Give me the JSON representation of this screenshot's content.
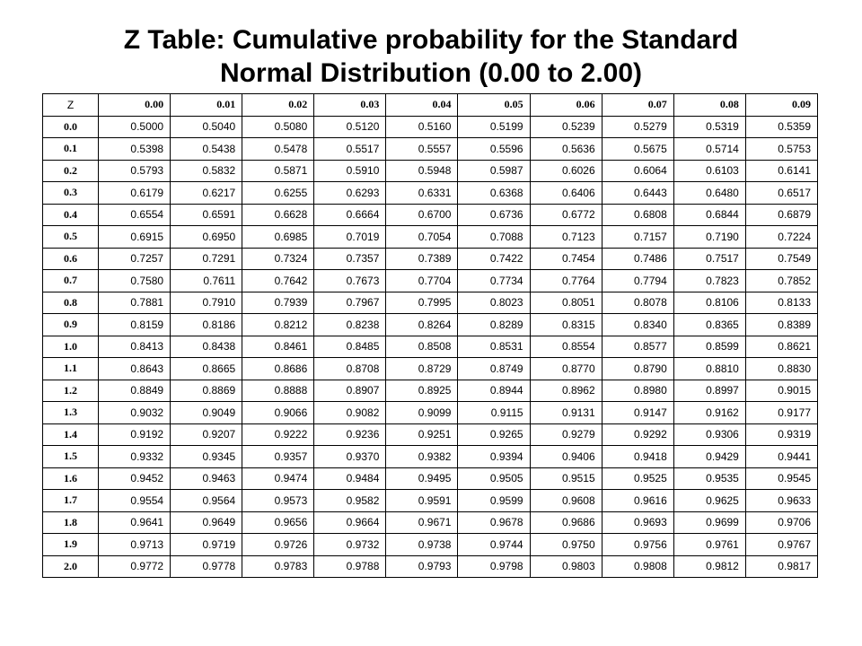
{
  "title": {
    "line1": "Z Table: Cumulative probability for the Standard",
    "line2": "Normal Distribution (0.00 to 2.00)"
  },
  "table": {
    "corner": "Z",
    "columns": [
      "0.00",
      "0.01",
      "0.02",
      "0.03",
      "0.04",
      "0.05",
      "0.06",
      "0.07",
      "0.08",
      "0.09"
    ],
    "rows": [
      {
        "z": "0.0",
        "values": [
          "0.5000",
          "0.5040",
          "0.5080",
          "0.5120",
          "0.5160",
          "0.5199",
          "0.5239",
          "0.5279",
          "0.5319",
          "0.5359"
        ]
      },
      {
        "z": "0.1",
        "values": [
          "0.5398",
          "0.5438",
          "0.5478",
          "0.5517",
          "0.5557",
          "0.5596",
          "0.5636",
          "0.5675",
          "0.5714",
          "0.5753"
        ]
      },
      {
        "z": "0.2",
        "values": [
          "0.5793",
          "0.5832",
          "0.5871",
          "0.5910",
          "0.5948",
          "0.5987",
          "0.6026",
          "0.6064",
          "0.6103",
          "0.6141"
        ]
      },
      {
        "z": "0.3",
        "values": [
          "0.6179",
          "0.6217",
          "0.6255",
          "0.6293",
          "0.6331",
          "0.6368",
          "0.6406",
          "0.6443",
          "0.6480",
          "0.6517"
        ]
      },
      {
        "z": "0.4",
        "values": [
          "0.6554",
          "0.6591",
          "0.6628",
          "0.6664",
          "0.6700",
          "0.6736",
          "0.6772",
          "0.6808",
          "0.6844",
          "0.6879"
        ]
      },
      {
        "z": "0.5",
        "values": [
          "0.6915",
          "0.6950",
          "0.6985",
          "0.7019",
          "0.7054",
          "0.7088",
          "0.7123",
          "0.7157",
          "0.7190",
          "0.7224"
        ]
      },
      {
        "z": "0.6",
        "values": [
          "0.7257",
          "0.7291",
          "0.7324",
          "0.7357",
          "0.7389",
          "0.7422",
          "0.7454",
          "0.7486",
          "0.7517",
          "0.7549"
        ]
      },
      {
        "z": "0.7",
        "values": [
          "0.7580",
          "0.7611",
          "0.7642",
          "0.7673",
          "0.7704",
          "0.7734",
          "0.7764",
          "0.7794",
          "0.7823",
          "0.7852"
        ]
      },
      {
        "z": "0.8",
        "values": [
          "0.7881",
          "0.7910",
          "0.7939",
          "0.7967",
          "0.7995",
          "0.8023",
          "0.8051",
          "0.8078",
          "0.8106",
          "0.8133"
        ]
      },
      {
        "z": "0.9",
        "values": [
          "0.8159",
          "0.8186",
          "0.8212",
          "0.8238",
          "0.8264",
          "0.8289",
          "0.8315",
          "0.8340",
          "0.8365",
          "0.8389"
        ]
      },
      {
        "z": "1.0",
        "values": [
          "0.8413",
          "0.8438",
          "0.8461",
          "0.8485",
          "0.8508",
          "0.8531",
          "0.8554",
          "0.8577",
          "0.8599",
          "0.8621"
        ]
      },
      {
        "z": "1.1",
        "values": [
          "0.8643",
          "0.8665",
          "0.8686",
          "0.8708",
          "0.8729",
          "0.8749",
          "0.8770",
          "0.8790",
          "0.8810",
          "0.8830"
        ]
      },
      {
        "z": "1.2",
        "values": [
          "0.8849",
          "0.8869",
          "0.8888",
          "0.8907",
          "0.8925",
          "0.8944",
          "0.8962",
          "0.8980",
          "0.8997",
          "0.9015"
        ]
      },
      {
        "z": "1.3",
        "values": [
          "0.9032",
          "0.9049",
          "0.9066",
          "0.9082",
          "0.9099",
          "0.9115",
          "0.9131",
          "0.9147",
          "0.9162",
          "0.9177"
        ]
      },
      {
        "z": "1.4",
        "values": [
          "0.9192",
          "0.9207",
          "0.9222",
          "0.9236",
          "0.9251",
          "0.9265",
          "0.9279",
          "0.9292",
          "0.9306",
          "0.9319"
        ]
      },
      {
        "z": "1.5",
        "values": [
          "0.9332",
          "0.9345",
          "0.9357",
          "0.9370",
          "0.9382",
          "0.9394",
          "0.9406",
          "0.9418",
          "0.9429",
          "0.9441"
        ]
      },
      {
        "z": "1.6",
        "values": [
          "0.9452",
          "0.9463",
          "0.9474",
          "0.9484",
          "0.9495",
          "0.9505",
          "0.9515",
          "0.9525",
          "0.9535",
          "0.9545"
        ]
      },
      {
        "z": "1.7",
        "values": [
          "0.9554",
          "0.9564",
          "0.9573",
          "0.9582",
          "0.9591",
          "0.9599",
          "0.9608",
          "0.9616",
          "0.9625",
          "0.9633"
        ]
      },
      {
        "z": "1.8",
        "values": [
          "0.9641",
          "0.9649",
          "0.9656",
          "0.9664",
          "0.9671",
          "0.9678",
          "0.9686",
          "0.9693",
          "0.9699",
          "0.9706"
        ]
      },
      {
        "z": "1.9",
        "values": [
          "0.9713",
          "0.9719",
          "0.9726",
          "0.9732",
          "0.9738",
          "0.9744",
          "0.9750",
          "0.9756",
          "0.9761",
          "0.9767"
        ]
      },
      {
        "z": "2.0",
        "values": [
          "0.9772",
          "0.9778",
          "0.9783",
          "0.9788",
          "0.9793",
          "0.9798",
          "0.9803",
          "0.9808",
          "0.9812",
          "0.9817"
        ]
      }
    ]
  }
}
